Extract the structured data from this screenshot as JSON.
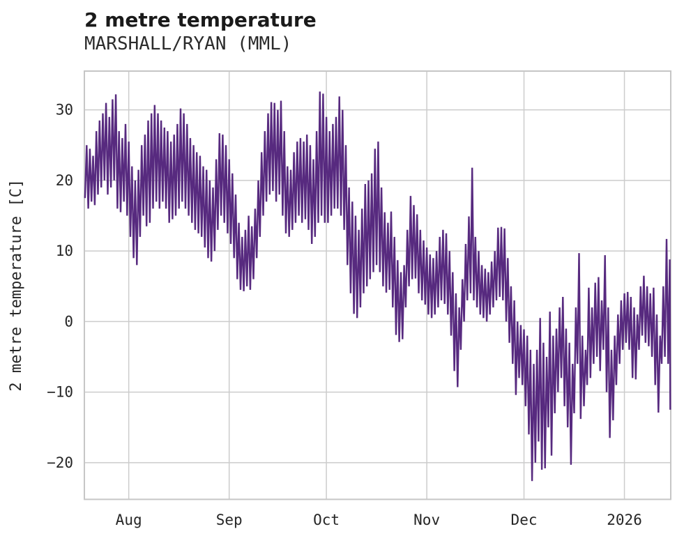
{
  "header": {
    "title": "2 metre temperature",
    "subtitle": "MARSHALL/RYAN (MML)"
  },
  "chart_data": {
    "type": "line",
    "title": "2 metre temperature",
    "subtitle": "MARSHALL/RYAN (MML)",
    "xlabel": "",
    "ylabel": "2 metre temperature [C]",
    "legend": "none",
    "grid": "on",
    "line_color": "#572a7f",
    "grid_color": "#cccccc",
    "text_color": "#262626",
    "ylim": [
      -25.2,
      35.5
    ],
    "xlim_days": [
      0,
      181
    ],
    "y_ticks": [
      {
        "label": "30",
        "value": 30
      },
      {
        "label": "20",
        "value": 20
      },
      {
        "label": "10",
        "value": 10
      },
      {
        "label": "0",
        "value": 0
      },
      {
        "label": "−10",
        "value": -10
      },
      {
        "label": "−20",
        "value": -20
      }
    ],
    "x_ticks": [
      {
        "label": "Aug",
        "day": 13.7
      },
      {
        "label": "Sep",
        "day": 44.7
      },
      {
        "label": "Oct",
        "day": 74.7
      },
      {
        "label": "Nov",
        "day": 105.7
      },
      {
        "label": "Dec",
        "day": 135.7
      },
      {
        "label": "2026",
        "day": 166.7
      }
    ],
    "daily": {
      "min": [
        17.5,
        16,
        17,
        16.5,
        18,
        19,
        20,
        18,
        19,
        20,
        16,
        15.5,
        17,
        15,
        12,
        9,
        8,
        12,
        15,
        13.5,
        14,
        16,
        17,
        16,
        17,
        16,
        14,
        14.5,
        15,
        16,
        17,
        16,
        15,
        14,
        13,
        12.5,
        12,
        10.5,
        9,
        8.5,
        10,
        13,
        15,
        14,
        12.5,
        11,
        9,
        6,
        4.5,
        4.3,
        5,
        4.5,
        6,
        9,
        12,
        15,
        17,
        18,
        18.5,
        17,
        18,
        15,
        12.5,
        12,
        13,
        14,
        15,
        14,
        14.5,
        13,
        11,
        12,
        14,
        15,
        14,
        14,
        15,
        16,
        16,
        15,
        13,
        8,
        4,
        1.1,
        0.5,
        2,
        4,
        5,
        6,
        7,
        8,
        7,
        5,
        4.1,
        4.5,
        2,
        -1.9,
        -2.9,
        -2.5,
        2,
        5,
        6,
        6.1,
        4,
        3,
        2.4,
        1,
        0.5,
        1,
        2,
        3,
        2.5,
        1,
        -2,
        -7,
        -9.3,
        -4,
        0,
        3,
        4,
        3,
        2,
        1,
        0.5,
        0,
        1,
        2,
        3,
        3.5,
        3,
        0,
        -3,
        -6,
        -10.4,
        -8,
        -9,
        -12,
        -16,
        -22.6,
        -20,
        -17,
        -21,
        -20.8,
        -15,
        -19,
        -13,
        -10,
        -8,
        -12,
        -15,
        -20.3,
        -13,
        -6,
        -13.8,
        -12,
        -9,
        -8,
        -6,
        -5,
        -7,
        -4,
        -10,
        -16.5,
        -14,
        -9,
        -6,
        -4,
        -3,
        -4,
        -8,
        -8.2,
        -4,
        -2,
        -3,
        -3.5,
        -5,
        -9,
        -12.9,
        -6,
        -5,
        -6
      ],
      "max": [
        25,
        24.5,
        23.5,
        27,
        28.5,
        29.5,
        31,
        29,
        31.5,
        32.2,
        27,
        26,
        28,
        25.5,
        22,
        20,
        21.5,
        25,
        26.5,
        28.5,
        29.5,
        30.7,
        29.5,
        28.5,
        27.5,
        27,
        25.5,
        26.5,
        28,
        30.2,
        29.5,
        28,
        26,
        25,
        24,
        23.5,
        22,
        21.5,
        20,
        19,
        23,
        26.7,
        26.5,
        25,
        23,
        21,
        18,
        14,
        12,
        13,
        15,
        13.5,
        16,
        20,
        24,
        27,
        29.5,
        31.1,
        31,
        30,
        31.3,
        27,
        22,
        21.5,
        24,
        25.5,
        26,
        25.5,
        26.5,
        25,
        23,
        27,
        32.6,
        32.3,
        29,
        27,
        28,
        29,
        31.9,
        30,
        25,
        19,
        17,
        15,
        13,
        16,
        19.5,
        20,
        21,
        24.5,
        25.5,
        19,
        15.5,
        14,
        15.6,
        12,
        8.7,
        7,
        8,
        13,
        17.8,
        16.5,
        15.2,
        13,
        11.5,
        10.5,
        9.5,
        9,
        10,
        12,
        13,
        12.5,
        10,
        7,
        4,
        2,
        6,
        11,
        14.9,
        21.8,
        12,
        10,
        8,
        7.5,
        7,
        8.5,
        10,
        13.3,
        13.4,
        13.2,
        9,
        5,
        3,
        0,
        -0.5,
        -1.1,
        -2,
        -4,
        -6,
        -4,
        0.5,
        -3,
        -5,
        1.4,
        -2,
        -1,
        2,
        3.5,
        -1,
        -3,
        -6,
        2,
        9.7,
        -2,
        -4,
        4.8,
        2,
        5.5,
        6.3,
        3,
        9.4,
        2,
        -4,
        -2,
        1,
        3,
        4,
        4.2,
        3.5,
        2,
        1,
        5,
        6.5,
        5,
        4,
        4.8,
        1,
        -2,
        5,
        11.7,
        8.8
      ]
    },
    "tail_point": {
      "day": 180.85,
      "value": -12.5
    }
  }
}
